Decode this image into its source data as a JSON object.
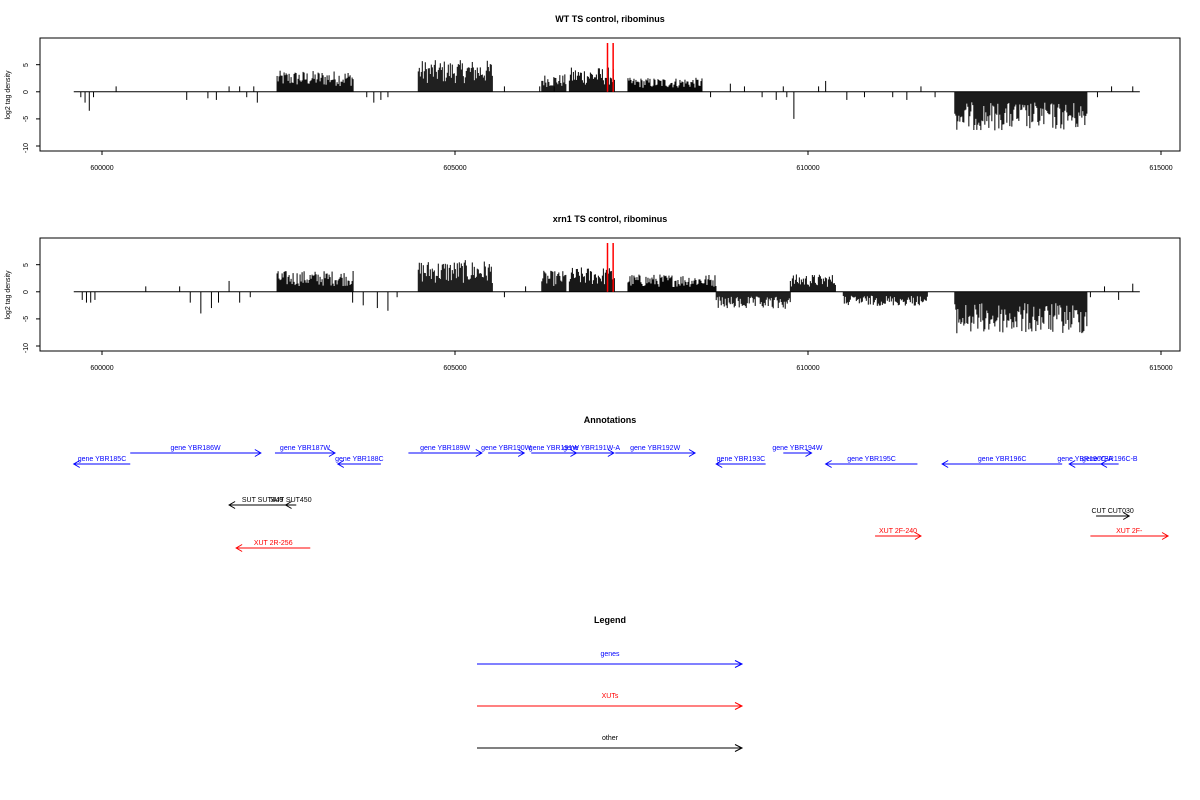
{
  "colors": {
    "gene": "#0000ff",
    "xut": "#ff0000",
    "other": "#000000",
    "marker": "#ff0000",
    "bars": "#000000"
  },
  "chart_data": [
    {
      "type": "bar",
      "title": "WT TS control, ribominus",
      "ylabel": "log2 tag density",
      "xlim": [
        599600,
        614700
      ],
      "ylim": [
        -10,
        9
      ],
      "x_ticks": [
        "600000",
        "605000",
        "610000",
        "615000"
      ],
      "y_ticks": [
        "-10",
        "-5",
        "0",
        "5"
      ],
      "markers": [
        607160,
        607240
      ],
      "series": [
        {
          "x": [
            599700,
            599760,
            599820,
            599880,
            600200,
            601200,
            601500,
            601620,
            601800,
            601950,
            602050,
            602150,
            602200
          ],
          "values": [
            -1,
            -2,
            -3.5,
            -1,
            1,
            -1.5,
            -1.2,
            -1.5,
            1,
            1,
            -1,
            1,
            -2
          ]
        },
        {
          "x": [
            602480,
            603560
          ],
          "values": [
            3,
            3
          ],
          "band": true
        },
        {
          "x": [
            603750,
            603850,
            603950,
            604050
          ],
          "values": [
            -1,
            -2,
            -1.5,
            -1
          ]
        },
        {
          "x": [
            604480,
            605530
          ],
          "values": [
            4.5,
            4.5
          ],
          "band": true
        },
        {
          "x": [
            605700,
            606200,
            606400
          ],
          "values": [
            1,
            1,
            1
          ]
        },
        {
          "x": [
            606230,
            606580
          ],
          "values": [
            2.5,
            2.5
          ],
          "band": true
        },
        {
          "x": [
            606620,
            607270
          ],
          "values": [
            3.5,
            3.5
          ],
          "band": true
        },
        {
          "x": [
            607450,
            608500
          ],
          "values": [
            2,
            2
          ],
          "band": true
        },
        {
          "x": [
            608620,
            608900,
            609100,
            609350,
            609550,
            609650,
            609700,
            609800,
            610150,
            610250,
            610550,
            610800,
            611200,
            611400,
            611600,
            611800
          ],
          "values": [
            -1,
            1.5,
            1,
            -1,
            -1.5,
            1,
            -1,
            -5,
            1,
            2,
            -1.5,
            -1,
            -1,
            -1.5,
            1,
            -1
          ]
        },
        {
          "x": [
            612080,
            613960
          ],
          "values": [
            -5.5,
            -5.5
          ],
          "band": true
        },
        {
          "x": [
            614100,
            614300,
            614600
          ],
          "values": [
            -1,
            1,
            1
          ]
        }
      ]
    },
    {
      "type": "bar",
      "title": "xrn1 TS control, ribominus",
      "ylabel": "log2 tag density",
      "xlim": [
        599600,
        614700
      ],
      "ylim": [
        -10,
        9
      ],
      "x_ticks": [
        "600000",
        "605000",
        "610000",
        "615000"
      ],
      "y_ticks": [
        "-10",
        "-5",
        "0",
        "5"
      ],
      "markers": [
        607160,
        607240
      ],
      "series": [
        {
          "x": [
            599720,
            599780,
            599840,
            599900,
            600620,
            601100,
            601250,
            601400,
            601550,
            601650,
            601800,
            601950,
            602100
          ],
          "values": [
            -1.5,
            -2,
            -2,
            -1.5,
            1,
            1,
            -2,
            -4,
            -3,
            -2,
            2,
            -2,
            -1
          ]
        },
        {
          "x": [
            602480,
            603560
          ],
          "values": [
            3,
            3
          ],
          "band": true
        },
        {
          "x": [
            603550,
            603700,
            603900,
            604050,
            604180
          ],
          "values": [
            -2,
            -2.5,
            -3,
            -3.5,
            -1
          ]
        },
        {
          "x": [
            604480,
            605530
          ],
          "values": [
            4.5,
            4.5
          ],
          "band": true
        },
        {
          "x": [
            605700,
            606000
          ],
          "values": [
            -1,
            1
          ]
        },
        {
          "x": [
            606230,
            606580
          ],
          "values": [
            3,
            3
          ],
          "band": true
        },
        {
          "x": [
            606620,
            607270
          ],
          "values": [
            3.5,
            3.5
          ],
          "band": true
        },
        {
          "x": [
            607450,
            608700
          ],
          "values": [
            2.5,
            2.5
          ],
          "band": true
        },
        {
          "x": [
            608700,
            609750
          ],
          "values": [
            -2.5,
            -2.5
          ],
          "band": true
        },
        {
          "x": [
            609750,
            610400
          ],
          "values": [
            2.5,
            2.5
          ],
          "band": true
        },
        {
          "x": [
            610500,
            611700
          ],
          "values": [
            -2,
            -2
          ],
          "band": true
        },
        {
          "x": [
            612080,
            613960
          ],
          "values": [
            -6,
            -6
          ],
          "band": true
        },
        {
          "x": [
            614000,
            614200,
            614400,
            614600
          ],
          "values": [
            -1,
            1,
            -1.5,
            1.5
          ]
        }
      ]
    }
  ],
  "annotations": {
    "title": "Annotations",
    "features": [
      {
        "label": "gene YBR185C",
        "start": 599600,
        "end": 600400,
        "strand": "-",
        "kind": "gene",
        "row": 0
      },
      {
        "label": "gene YBR186W",
        "start": 600400,
        "end": 602250,
        "strand": "+",
        "kind": "gene",
        "row": 1
      },
      {
        "label": "gene YBR187W",
        "start": 602450,
        "end": 603300,
        "strand": "+",
        "kind": "gene",
        "row": 1
      },
      {
        "label": "gene YBR188C",
        "start": 603340,
        "end": 603950,
        "strand": "-",
        "kind": "gene",
        "row": 0
      },
      {
        "label": "gene YBR189W",
        "start": 604340,
        "end": 605380,
        "strand": "+",
        "kind": "gene",
        "row": 1
      },
      {
        "label": "gene YBR190W",
        "start": 605470,
        "end": 605980,
        "strand": "+",
        "kind": "gene",
        "row": 1
      },
      {
        "label": "gene YBR191W",
        "start": 606080,
        "end": 606720,
        "strand": "+",
        "kind": "gene",
        "row": 1
      },
      {
        "label": "gene YBR191W-A",
        "start": 606620,
        "end": 607250,
        "strand": "+",
        "kind": "gene",
        "row": 1
      },
      {
        "label": "gene YBR192W",
        "start": 607270,
        "end": 608400,
        "strand": "+",
        "kind": "gene",
        "row": 1
      },
      {
        "label": "gene YBR193C",
        "start": 608700,
        "end": 609400,
        "strand": "-",
        "kind": "gene",
        "row": 0
      },
      {
        "label": "gene YBR194W",
        "start": 609650,
        "end": 610050,
        "strand": "+",
        "kind": "gene",
        "row": 1
      },
      {
        "label": "gene YBR195C",
        "start": 610250,
        "end": 611550,
        "strand": "-",
        "kind": "gene",
        "row": 0
      },
      {
        "label": "gene YBR196C",
        "start": 611900,
        "end": 613600,
        "strand": "-",
        "kind": "gene",
        "row": 0
      },
      {
        "label": "gene YBR196C-A",
        "start": 613700,
        "end": 614150,
        "strand": "-",
        "kind": "gene",
        "row": 0
      },
      {
        "label": "gene YBR196C-B",
        "start": 614150,
        "end": 614400,
        "strand": "-",
        "kind": "gene",
        "row": 0
      },
      {
        "label": "SUT SUT449",
        "start": 601800,
        "end": 602750,
        "strand": "-",
        "kind": "other",
        "row": 2
      },
      {
        "label": "SUT SUT450",
        "start": 602600,
        "end": 602750,
        "strand": "-",
        "kind": "other",
        "row": 2
      },
      {
        "label": "CUT CUT030",
        "start": 614080,
        "end": 614550,
        "strand": "+",
        "kind": "other",
        "row": 3
      },
      {
        "label": "XUT 2R-256",
        "start": 601900,
        "end": 602950,
        "strand": "-",
        "kind": "xut",
        "row": 5
      },
      {
        "label": "XUT 2F-240",
        "start": 610950,
        "end": 611600,
        "strand": "+",
        "kind": "xut",
        "row": 4
      },
      {
        "label": "XUT 2F-",
        "start": 614000,
        "end": 615100,
        "strand": "+",
        "kind": "xut",
        "row": 4
      }
    ]
  },
  "legend": {
    "title": "Legend",
    "items": [
      {
        "label": "genes",
        "kind": "gene"
      },
      {
        "label": "XUTs",
        "kind": "xut"
      },
      {
        "label": "other",
        "kind": "other"
      }
    ]
  }
}
